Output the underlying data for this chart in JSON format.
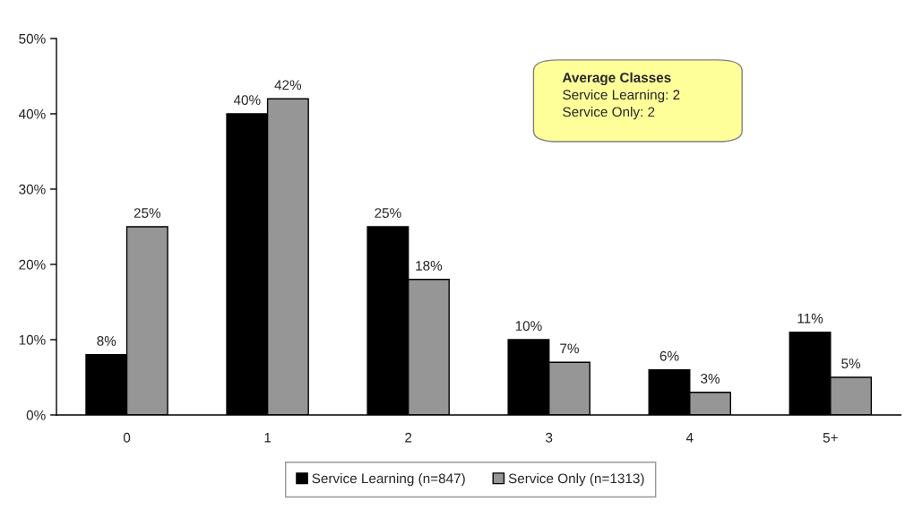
{
  "chart_data": {
    "type": "bar",
    "categories": [
      "0",
      "1",
      "2",
      "3",
      "4",
      "5+"
    ],
    "series": [
      {
        "name": "Service Learning (n=847)",
        "color": "#000000",
        "values": [
          8,
          40,
          25,
          10,
          6,
          11
        ],
        "value_labels": [
          "8%",
          "40%",
          "25%",
          "10%",
          "6%",
          "11%"
        ]
      },
      {
        "name": "Service Only (n=1313)",
        "color": "#969696",
        "values": [
          25,
          42,
          18,
          7,
          3,
          5
        ],
        "value_labels": [
          "25%",
          "42%",
          "18%",
          "7%",
          "3%",
          "5%"
        ]
      }
    ],
    "ylim": [
      0,
      50
    ],
    "yticks": [
      {
        "value": 0,
        "label": "0%"
      },
      {
        "value": 10,
        "label": "10%"
      },
      {
        "value": 20,
        "label": "20%"
      },
      {
        "value": 30,
        "label": "30%"
      },
      {
        "value": 40,
        "label": "40%"
      },
      {
        "value": 50,
        "label": "50%"
      }
    ],
    "annotations": [
      "Average Classes",
      "Service Learning: 2",
      "Service Only: 2"
    ],
    "legend": "bottom",
    "grid": false
  }
}
